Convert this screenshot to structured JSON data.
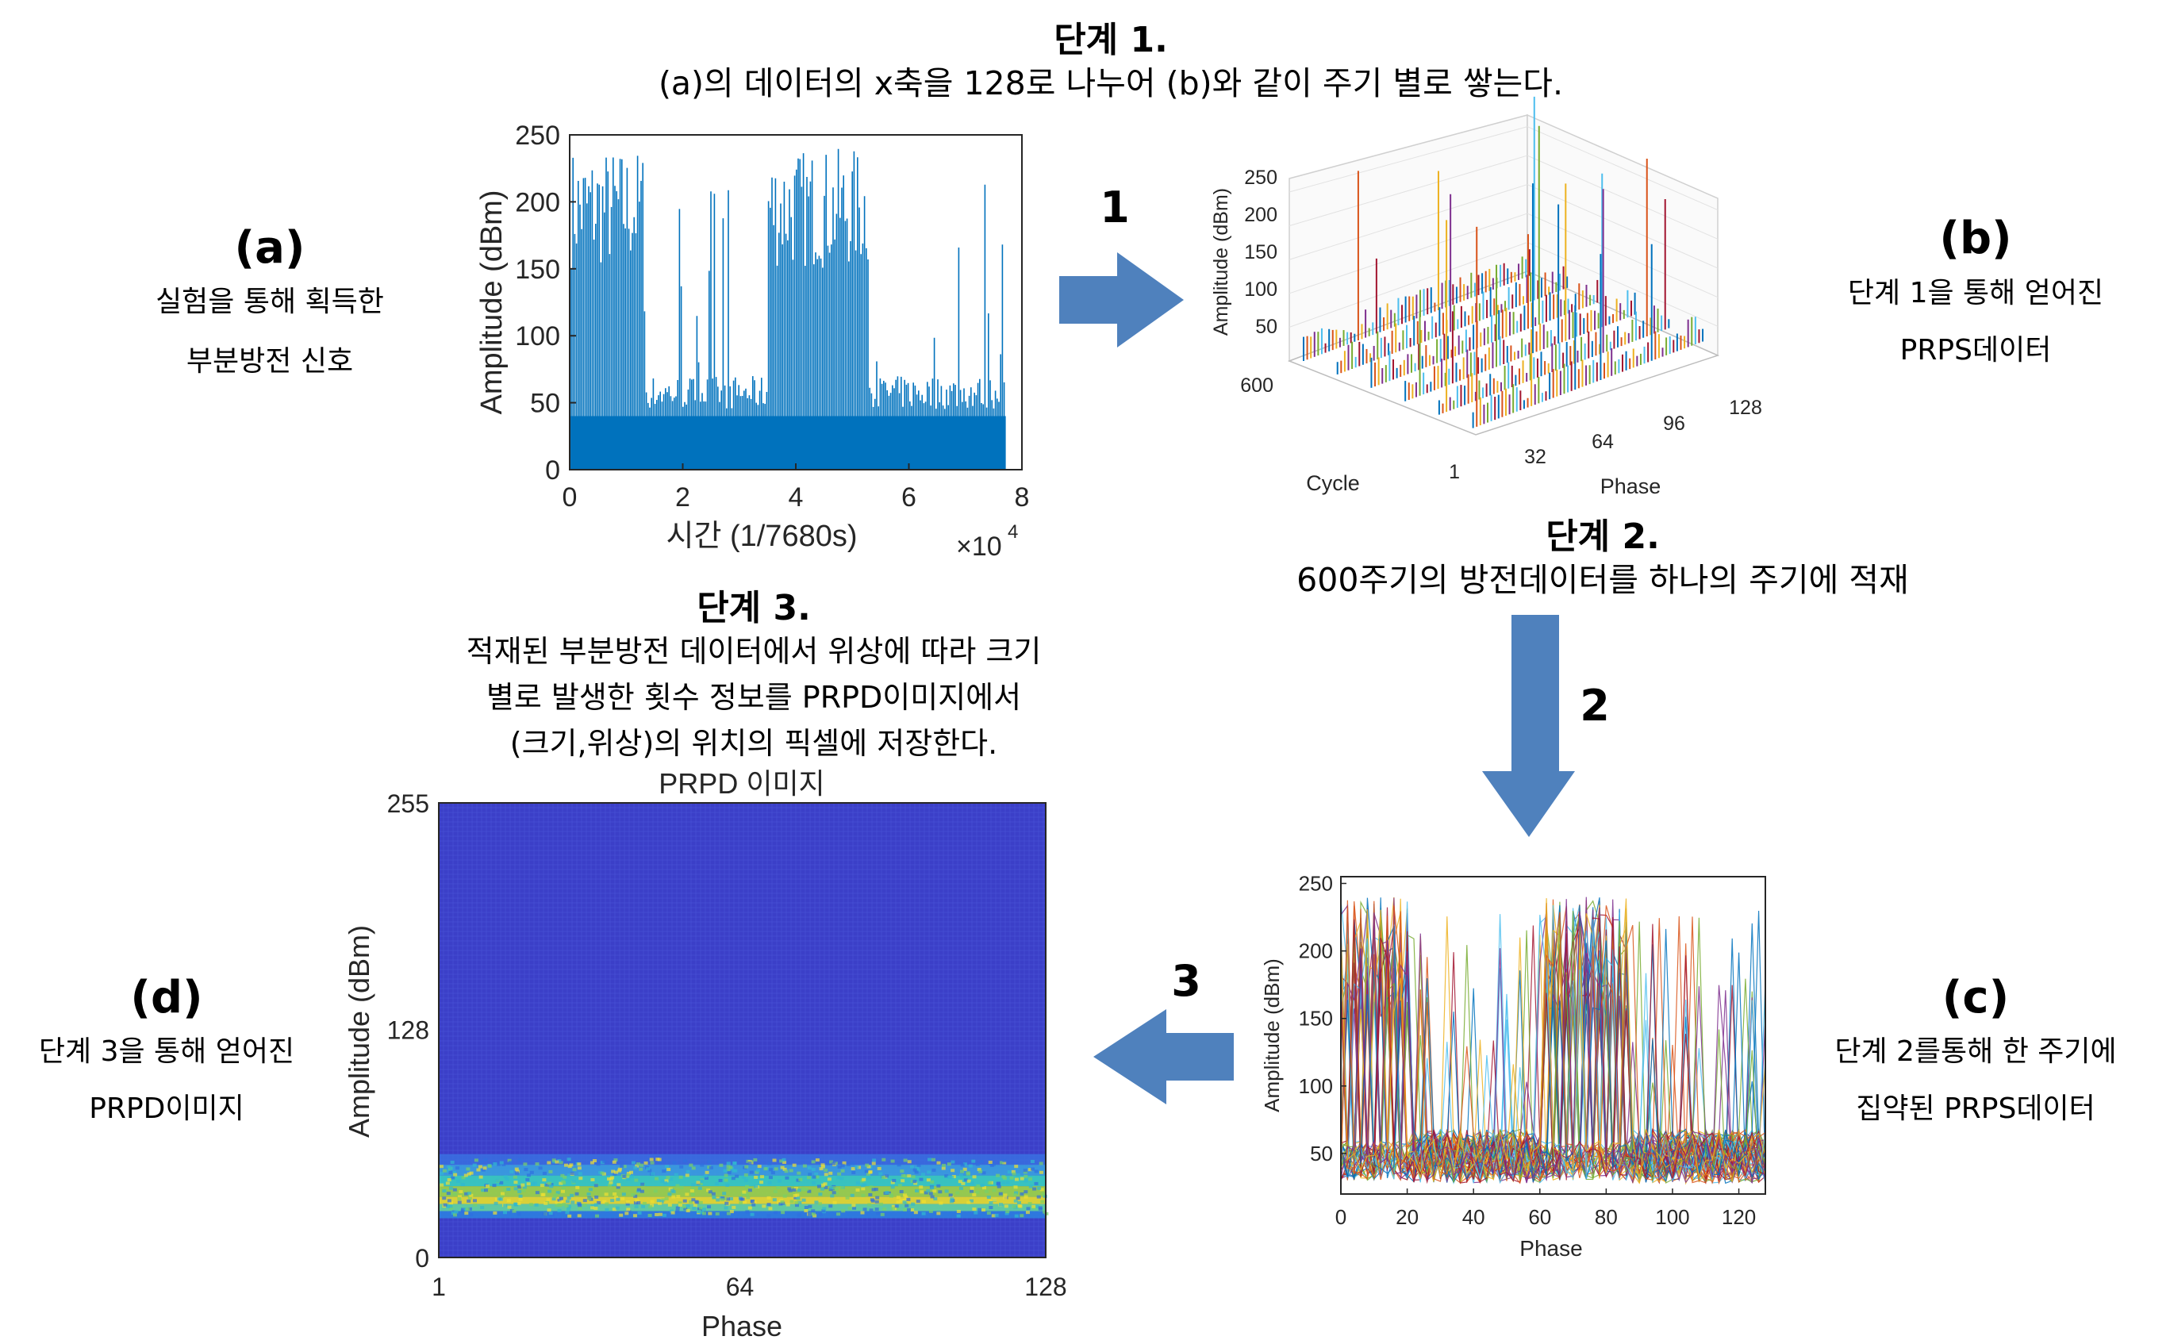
{
  "step1": {
    "title": "단계 1.",
    "desc": "(a)의 데이터의 x축을 128로 나누어 (b)와 같이 주기 별로 쌓는다."
  },
  "step2": {
    "title": "단계 2.",
    "desc": "600주기의 방전데이터를 하나의 주기에 적재"
  },
  "step3": {
    "title": "단계 3.",
    "desc_lines": [
      "적재된 부분방전 데이터에서 위상에 따라 크기",
      "별로 발생한 횟수 정보를 PRPD이미지에서",
      "(크기,위상)의 위치의 픽셀에  저장한다."
    ]
  },
  "labels": {
    "a": {
      "tag": "(a)",
      "lines": [
        "실험을 통해 획득한",
        "부분방전 신호"
      ]
    },
    "b": {
      "tag": "(b)",
      "lines": [
        "단계 1을 통해 얻어진",
        "PRPS데이터"
      ]
    },
    "c": {
      "tag": "(c)",
      "lines": [
        "단계 2를통해 한 주기에",
        "집약된 PRPS데이터"
      ]
    },
    "d": {
      "tag": "(d)",
      "lines": [
        "단계 3을 통해 얻어진",
        "PRPD이미지"
      ]
    }
  },
  "arrows": {
    "a1": "1",
    "a2": "2",
    "a3": "3"
  },
  "colors": {
    "arrow": "#4f81bd",
    "signal": "#0072bd",
    "axis": "#262626"
  },
  "chart_data": [
    {
      "id": "a",
      "type": "area",
      "xlabel": "시간 (1/7680s)",
      "x_multiplier": "×10",
      "x_multiplier_exp": "4",
      "ylabel": "Amplitude (dBm)",
      "xlim": [
        0,
        8
      ],
      "ylim": [
        0,
        250
      ],
      "xticks": [
        "0",
        "2",
        "4",
        "6",
        "8"
      ],
      "yticks": [
        "0",
        "50",
        "100",
        "150",
        "200",
        "250"
      ],
      "x": [
        0,
        1.3,
        1.3,
        3.5,
        3.5,
        5.3,
        5.3,
        7.7
      ],
      "values": [
        220,
        220,
        70,
        70,
        230,
        230,
        60,
        60
      ]
    },
    {
      "id": "b",
      "type": "bar",
      "zlabel": "Amplitude (dBm)",
      "cycle_label": "Cycle",
      "phase_label": "Phase",
      "zticks": [
        "50",
        "100",
        "150",
        "200",
        "250"
      ],
      "cycle_ticks": [
        "600",
        "1"
      ],
      "phase_ticks": [
        "32",
        "64",
        "96",
        "128"
      ]
    },
    {
      "id": "c",
      "type": "line",
      "xlabel": "Phase",
      "ylabel": "Amplitude (dBm)",
      "xlim": [
        0,
        128
      ],
      "ylim": [
        20,
        255
      ],
      "xticks": [
        "0",
        "20",
        "40",
        "60",
        "80",
        "100",
        "120"
      ],
      "yticks": [
        "50",
        "100",
        "150",
        "200",
        "250"
      ]
    },
    {
      "id": "d",
      "type": "heatmap",
      "title": "PRPD 이미지",
      "xlabel": "Phase",
      "ylabel": "Amplitude (dBm)",
      "xlim": [
        1,
        128
      ],
      "ylim": [
        0,
        255
      ],
      "xticks": [
        "1",
        "64",
        "128"
      ],
      "yticks": [
        "0",
        "128",
        "255"
      ]
    }
  ]
}
